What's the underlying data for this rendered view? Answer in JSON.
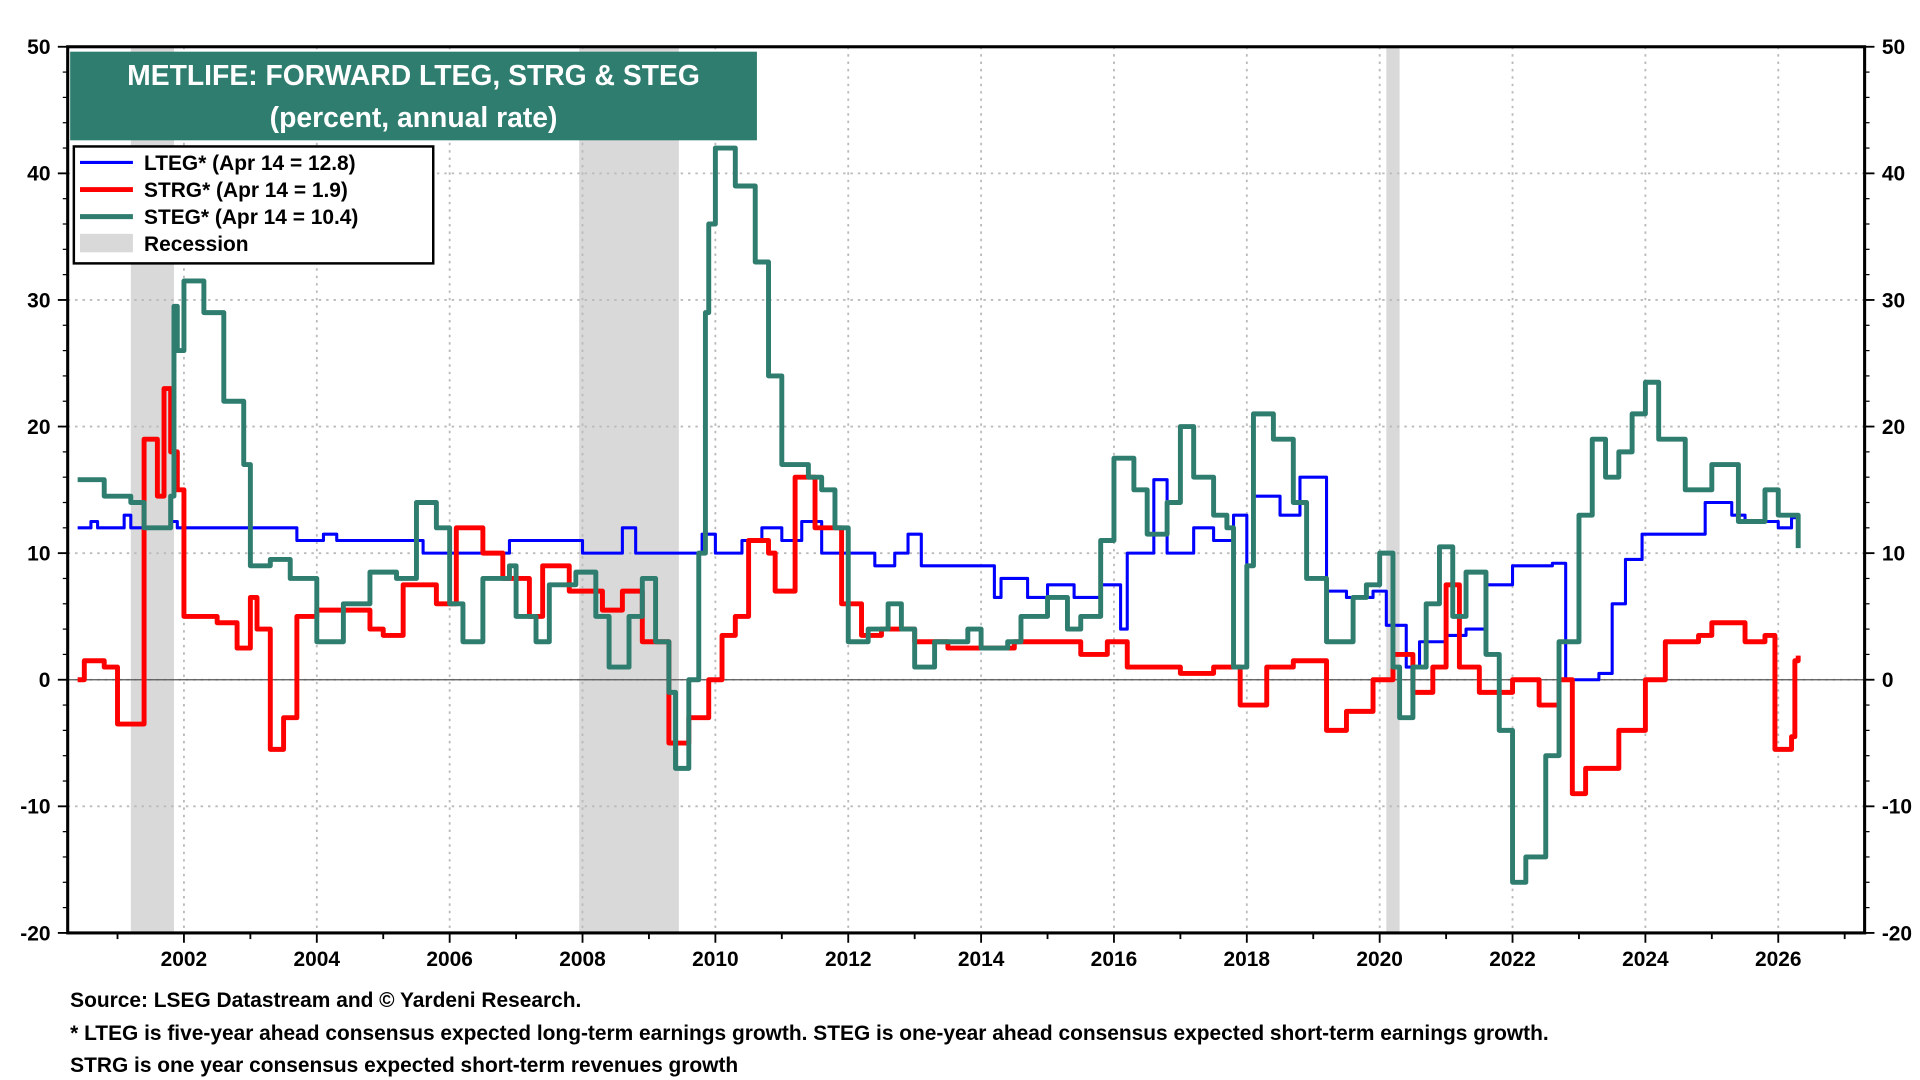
{
  "chart_data": {
    "type": "line",
    "title": "METLIFE: FORWARD LTEG, STRG & STEG",
    "subtitle": "(percent, annual rate)",
    "xlim": [
      2000.25,
      2027.3
    ],
    "ylim": [
      -20,
      50
    ],
    "yticks": [
      -20,
      -10,
      0,
      10,
      20,
      30,
      40,
      50
    ],
    "xticks": [
      2002,
      2004,
      2006,
      2008,
      2010,
      2012,
      2014,
      2016,
      2018,
      2020,
      2022,
      2024,
      2026
    ],
    "grid": true,
    "legend_position": "top-left",
    "recessions": [
      [
        2001.2,
        2001.85
      ],
      [
        2007.95,
        2009.45
      ],
      [
        2020.1,
        2020.3
      ]
    ],
    "legend": {
      "lteg": "LTEG* (Apr 14 = 12.8)",
      "strg": "STRG* (Apr 14 = 1.9)",
      "steg": "STEG* (Apr 14 = 10.4)",
      "recession": "Recession"
    },
    "series": [
      {
        "name": "LTEG*",
        "color": "#0000ff",
        "points": [
          [
            2000.4,
            12
          ],
          [
            2000.6,
            12.5
          ],
          [
            2000.7,
            12
          ],
          [
            2001.0,
            12
          ],
          [
            2001.1,
            13
          ],
          [
            2001.2,
            12
          ],
          [
            2001.8,
            12.5
          ],
          [
            2001.9,
            12
          ],
          [
            2003.5,
            12
          ],
          [
            2003.7,
            11
          ],
          [
            2004.1,
            11.5
          ],
          [
            2004.3,
            11
          ],
          [
            2005.6,
            10
          ],
          [
            2006.5,
            10
          ],
          [
            2006.9,
            11
          ],
          [
            2008.0,
            10
          ],
          [
            2008.6,
            12
          ],
          [
            2008.8,
            10
          ],
          [
            2009.0,
            10
          ],
          [
            2009.8,
            11.5
          ],
          [
            2010.0,
            10
          ],
          [
            2010.4,
            11
          ],
          [
            2010.7,
            12
          ],
          [
            2011.0,
            11
          ],
          [
            2011.3,
            12.5
          ],
          [
            2011.6,
            10
          ],
          [
            2012.4,
            9
          ],
          [
            2012.7,
            10
          ],
          [
            2012.9,
            11.5
          ],
          [
            2013.1,
            9
          ],
          [
            2013.4,
            9
          ],
          [
            2014.2,
            6.5
          ],
          [
            2014.3,
            8
          ],
          [
            2014.7,
            6.5
          ],
          [
            2015.0,
            7.5
          ],
          [
            2015.4,
            6.5
          ],
          [
            2015.8,
            7.5
          ],
          [
            2016.1,
            4
          ],
          [
            2016.2,
            10
          ],
          [
            2016.6,
            15.8
          ],
          [
            2016.8,
            10
          ],
          [
            2017.2,
            12
          ],
          [
            2017.5,
            11
          ],
          [
            2017.8,
            13
          ],
          [
            2018.0,
            9
          ],
          [
            2018.1,
            14.5
          ],
          [
            2018.5,
            13
          ],
          [
            2018.8,
            16
          ],
          [
            2019.2,
            7
          ],
          [
            2019.5,
            6.5
          ],
          [
            2019.9,
            7
          ],
          [
            2020.1,
            4.3
          ],
          [
            2020.4,
            1
          ],
          [
            2020.6,
            3
          ],
          [
            2021.0,
            3.5
          ],
          [
            2021.3,
            4
          ],
          [
            2021.6,
            7.5
          ],
          [
            2022.0,
            9
          ],
          [
            2022.6,
            9.2
          ],
          [
            2022.8,
            0
          ],
          [
            2023.3,
            0.5
          ],
          [
            2023.5,
            6
          ],
          [
            2023.7,
            9.5
          ],
          [
            2023.95,
            11.5
          ],
          [
            2024.9,
            14
          ],
          [
            2025.3,
            13
          ],
          [
            2025.5,
            12.5
          ],
          [
            2026.0,
            12
          ],
          [
            2026.2,
            12.8
          ],
          [
            2026.3,
            12.8
          ]
        ]
      },
      {
        "name": "STRG*",
        "color": "#ff0000",
        "points": [
          [
            2000.4,
            0
          ],
          [
            2000.5,
            1.5
          ],
          [
            2000.8,
            1
          ],
          [
            2001.0,
            -3.5
          ],
          [
            2001.3,
            -3.5
          ],
          [
            2001.4,
            19
          ],
          [
            2001.6,
            14.5
          ],
          [
            2001.7,
            23
          ],
          [
            2001.8,
            18
          ],
          [
            2001.9,
            15
          ],
          [
            2002.0,
            5
          ],
          [
            2002.5,
            4.5
          ],
          [
            2002.8,
            2.5
          ],
          [
            2003.0,
            6.5
          ],
          [
            2003.1,
            4
          ],
          [
            2003.3,
            -5.5
          ],
          [
            2003.5,
            -3
          ],
          [
            2003.7,
            5
          ],
          [
            2004.0,
            5.5
          ],
          [
            2004.8,
            4
          ],
          [
            2005.0,
            3.5
          ],
          [
            2005.3,
            7.5
          ],
          [
            2005.8,
            6
          ],
          [
            2006.1,
            12
          ],
          [
            2006.5,
            10
          ],
          [
            2006.8,
            8
          ],
          [
            2007.2,
            5
          ],
          [
            2007.4,
            9
          ],
          [
            2007.8,
            7
          ],
          [
            2008.3,
            5.5
          ],
          [
            2008.6,
            7
          ],
          [
            2008.9,
            3
          ],
          [
            2009.3,
            -5
          ],
          [
            2009.6,
            -3
          ],
          [
            2009.9,
            0
          ],
          [
            2010.1,
            3.5
          ],
          [
            2010.3,
            5
          ],
          [
            2010.5,
            11
          ],
          [
            2010.8,
            10
          ],
          [
            2010.9,
            7
          ],
          [
            2011.2,
            16
          ],
          [
            2011.5,
            12
          ],
          [
            2011.9,
            6
          ],
          [
            2012.2,
            3.5
          ],
          [
            2012.5,
            4
          ],
          [
            2013.0,
            3
          ],
          [
            2013.5,
            2.5
          ],
          [
            2014.5,
            3
          ],
          [
            2015.5,
            2
          ],
          [
            2015.9,
            3
          ],
          [
            2016.2,
            1
          ],
          [
            2017.0,
            0.5
          ],
          [
            2017.5,
            1
          ],
          [
            2017.9,
            -2
          ],
          [
            2018.3,
            1
          ],
          [
            2018.7,
            1.5
          ],
          [
            2019.2,
            -4
          ],
          [
            2019.5,
            -2.5
          ],
          [
            2019.9,
            0
          ],
          [
            2020.2,
            2
          ],
          [
            2020.5,
            -1
          ],
          [
            2020.8,
            1
          ],
          [
            2021.0,
            7.5
          ],
          [
            2021.2,
            1
          ],
          [
            2021.5,
            -1
          ],
          [
            2022.0,
            0
          ],
          [
            2022.4,
            -2
          ],
          [
            2022.7,
            0
          ],
          [
            2022.9,
            -9
          ],
          [
            2023.1,
            -7
          ],
          [
            2023.6,
            -4
          ],
          [
            2024.0,
            0
          ],
          [
            2024.3,
            3
          ],
          [
            2024.8,
            3.5
          ],
          [
            2025.0,
            4.5
          ],
          [
            2025.5,
            3
          ],
          [
            2025.8,
            3.5
          ],
          [
            2025.95,
            -5.5
          ],
          [
            2026.2,
            -4.5
          ],
          [
            2026.25,
            1.5
          ],
          [
            2026.3,
            1.9
          ]
        ]
      },
      {
        "name": "STEG*",
        "color": "#2e7d6e",
        "points": [
          [
            2000.4,
            15.8
          ],
          [
            2000.8,
            14.5
          ],
          [
            2001.2,
            14
          ],
          [
            2001.4,
            12
          ],
          [
            2001.8,
            14.5
          ],
          [
            2001.85,
            29.5
          ],
          [
            2001.9,
            26
          ],
          [
            2002.0,
            31.5
          ],
          [
            2002.3,
            29
          ],
          [
            2002.6,
            22
          ],
          [
            2002.9,
            17
          ],
          [
            2003.0,
            9
          ],
          [
            2003.3,
            9.5
          ],
          [
            2003.6,
            8
          ],
          [
            2004.0,
            3
          ],
          [
            2004.4,
            6
          ],
          [
            2004.8,
            8.5
          ],
          [
            2005.2,
            8
          ],
          [
            2005.5,
            14
          ],
          [
            2005.8,
            12
          ],
          [
            2006.0,
            6
          ],
          [
            2006.2,
            3
          ],
          [
            2006.5,
            8
          ],
          [
            2006.9,
            9
          ],
          [
            2007.0,
            5
          ],
          [
            2007.3,
            3
          ],
          [
            2007.5,
            7.5
          ],
          [
            2007.9,
            8.5
          ],
          [
            2008.2,
            5
          ],
          [
            2008.4,
            1
          ],
          [
            2008.7,
            5
          ],
          [
            2008.9,
            8
          ],
          [
            2009.1,
            3
          ],
          [
            2009.3,
            -1
          ],
          [
            2009.4,
            -7
          ],
          [
            2009.6,
            0
          ],
          [
            2009.75,
            10
          ],
          [
            2009.85,
            29
          ],
          [
            2009.9,
            36
          ],
          [
            2010.0,
            42
          ],
          [
            2010.3,
            39
          ],
          [
            2010.6,
            33
          ],
          [
            2010.8,
            24
          ],
          [
            2011.0,
            17
          ],
          [
            2011.4,
            16
          ],
          [
            2011.6,
            15
          ],
          [
            2011.8,
            12
          ],
          [
            2012.0,
            3
          ],
          [
            2012.3,
            4
          ],
          [
            2012.6,
            6
          ],
          [
            2012.8,
            4
          ],
          [
            2013.0,
            1
          ],
          [
            2013.3,
            3
          ],
          [
            2013.8,
            4
          ],
          [
            2014.0,
            2.5
          ],
          [
            2014.4,
            3
          ],
          [
            2014.6,
            5
          ],
          [
            2015.0,
            6.5
          ],
          [
            2015.3,
            4
          ],
          [
            2015.5,
            5
          ],
          [
            2015.8,
            11
          ],
          [
            2016.0,
            17.5
          ],
          [
            2016.3,
            15
          ],
          [
            2016.5,
            11.5
          ],
          [
            2016.8,
            14
          ],
          [
            2017.0,
            20
          ],
          [
            2017.2,
            16
          ],
          [
            2017.5,
            13
          ],
          [
            2017.7,
            12
          ],
          [
            2017.8,
            1
          ],
          [
            2018.0,
            9
          ],
          [
            2018.1,
            21
          ],
          [
            2018.4,
            19
          ],
          [
            2018.7,
            14
          ],
          [
            2018.9,
            8
          ],
          [
            2019.2,
            3
          ],
          [
            2019.6,
            6.5
          ],
          [
            2019.8,
            7.5
          ],
          [
            2020.0,
            10
          ],
          [
            2020.2,
            1
          ],
          [
            2020.3,
            -3
          ],
          [
            2020.5,
            1
          ],
          [
            2020.7,
            6
          ],
          [
            2020.9,
            10.5
          ],
          [
            2021.1,
            5
          ],
          [
            2021.3,
            8.5
          ],
          [
            2021.6,
            2
          ],
          [
            2021.8,
            -4
          ],
          [
            2022.0,
            -16
          ],
          [
            2022.2,
            -14
          ],
          [
            2022.5,
            -6
          ],
          [
            2022.7,
            3
          ],
          [
            2023.0,
            13
          ],
          [
            2023.2,
            19
          ],
          [
            2023.4,
            16
          ],
          [
            2023.6,
            18
          ],
          [
            2023.8,
            21
          ],
          [
            2024.0,
            23.5
          ],
          [
            2024.2,
            19
          ],
          [
            2024.6,
            15
          ],
          [
            2025.0,
            17
          ],
          [
            2025.4,
            12.5
          ],
          [
            2025.8,
            15
          ],
          [
            2026.0,
            13
          ],
          [
            2026.3,
            10.4
          ]
        ]
      }
    ]
  },
  "footer": {
    "source": "Source: LSEG Datastream and © Yardeni Research.",
    "note1": "* LTEG is five-year ahead consensus expected long-term earnings growth. STEG is one-year ahead consensus expected short-term earnings growth.",
    "note2": "STRG is one year consensus expected short-term revenues growth"
  }
}
